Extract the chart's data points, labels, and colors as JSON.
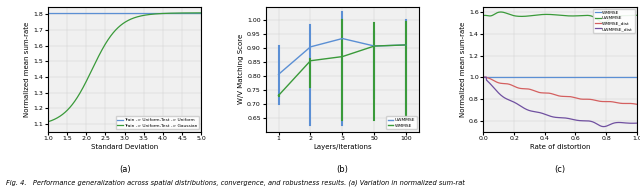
{
  "fig_width": 6.4,
  "fig_height": 1.88,
  "dpi": 100,
  "caption": "Fig. 4.   Performance generalization across spatial distributions, convergence, and robustness results. (a) Variation in normalized sum-rat",
  "subplot_a": {
    "xlabel": "Standard Deviation",
    "ylabel": "Normalized mean sum-rate",
    "xlim": [
      1.0,
      5.0
    ],
    "ylim": [
      1.05,
      1.85
    ],
    "yticks": [
      1.1,
      1.2,
      1.3,
      1.4,
      1.5,
      1.6,
      1.7,
      1.8
    ],
    "xticks": [
      1.0,
      1.5,
      2.0,
      2.5,
      3.0,
      3.5,
      4.0,
      4.5,
      5.0
    ],
    "label_a": "(a)",
    "line_uniform_color": "#5b8fd4",
    "line_gaussian_color": "#3a9a3a",
    "legend_labels": [
      "Train -> Uniform,Test -> Uniform",
      "Train -> Uniform,Test -> Gaussian"
    ]
  },
  "subplot_b": {
    "xlabel": "Layers/iterations",
    "ylabel": "W/V Matching Score",
    "xtick_labels": [
      "1",
      "2",
      "3",
      "50",
      "100"
    ],
    "ylim": [
      0.6,
      1.05
    ],
    "yticks": [
      0.65,
      0.7,
      0.75,
      0.8,
      0.85,
      0.9,
      0.95,
      1.0
    ],
    "label_b": "(b)",
    "uwmmse_color": "#5b8fd4",
    "wmmse_color": "#3a9a3a",
    "uwmmse_means": [
      0.806,
      0.905,
      0.935,
      0.908,
      0.912
    ],
    "uwmmse_mins": [
      0.7,
      0.622,
      0.622,
      0.72,
      0.64
    ],
    "uwmmse_maxs": [
      0.908,
      0.985,
      1.03,
      0.96,
      1.0
    ],
    "wmmse_means": [
      0.73,
      0.855,
      0.87,
      0.908,
      0.912
    ],
    "wmmse_mins": [
      0.728,
      0.76,
      0.64,
      0.64,
      0.64
    ],
    "wmmse_maxs": [
      0.732,
      0.86,
      1.0,
      0.99,
      0.995
    ],
    "legend_labels": [
      "UWMMSE",
      "WMMSE"
    ]
  },
  "subplot_c": {
    "xlabel": "Rate of distortion",
    "ylabel": "Normalized mean sum-rate",
    "xlim": [
      0.0,
      1.0
    ],
    "ylim": [
      0.5,
      1.65
    ],
    "yticks": [
      0.6,
      0.8,
      1.0,
      1.2,
      1.4,
      1.6
    ],
    "xticks": [
      0.0,
      0.2,
      0.4,
      0.6,
      0.8,
      1.0
    ],
    "label_c": "(c)",
    "wmmse_color": "#5b8fd4",
    "uwmmse_color": "#3a9a3a",
    "wmmse_dist_color": "#d46060",
    "uwmmse_dist_color": "#7050a0",
    "legend_labels": [
      "WMMSE",
      "UWMMSE",
      "WMMSE_dist",
      "UWMMSE_dist"
    ]
  }
}
